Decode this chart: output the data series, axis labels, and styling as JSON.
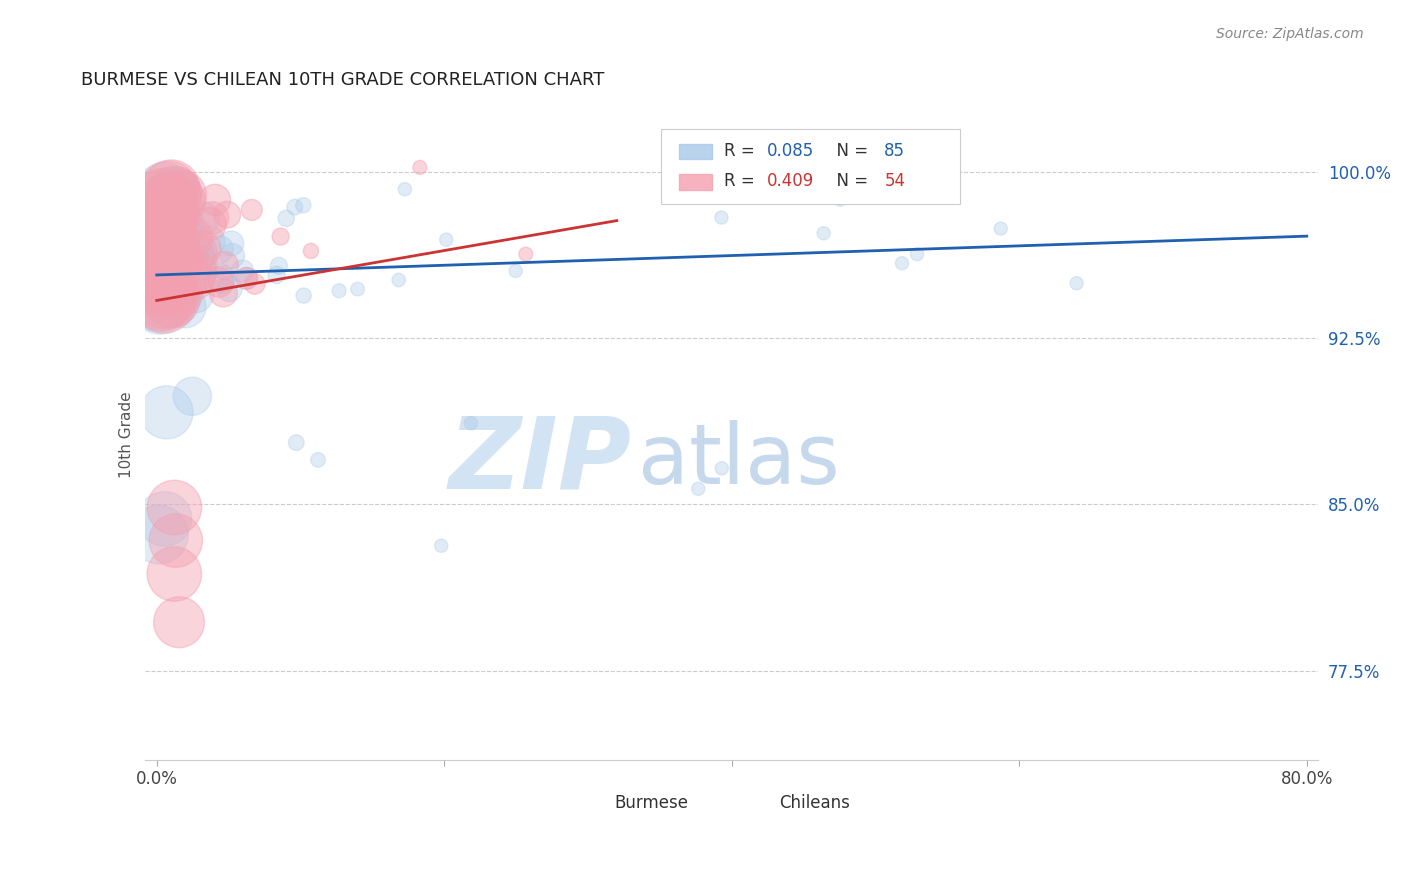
{
  "title": "BURMESE VS CHILEAN 10TH GRADE CORRELATION CHART",
  "source": "Source: ZipAtlas.com",
  "ylabel": "10th Grade",
  "y_ticks": [
    0.775,
    0.85,
    0.925,
    1.0
  ],
  "y_tick_labels": [
    "77.5%",
    "85.0%",
    "92.5%",
    "100.0%"
  ],
  "x_min": 0.0,
  "x_max": 0.8,
  "y_min": 0.735,
  "y_max": 1.028,
  "blue_R": 0.085,
  "blue_N": 85,
  "pink_R": 0.409,
  "pink_N": 54,
  "blue_color": "#a8c8e8",
  "pink_color": "#f4a0b0",
  "blue_line_color": "#2060b0",
  "pink_line_color": "#cc3333",
  "legend_blue_label": "Burmese",
  "legend_pink_label": "Chileans",
  "blue_N_color": "#2060b0",
  "pink_N_color": "#cc3333",
  "blue_line": {
    "x0": 0.0,
    "y0": 0.9535,
    "x1": 0.8,
    "y1": 0.971
  },
  "pink_line": {
    "x0": 0.0,
    "y0": 0.942,
    "x1": 0.32,
    "y1": 0.978
  },
  "watermark_zip": "ZIP",
  "watermark_atlas": "atlas",
  "watermark_color_zip": "#c5d8ec",
  "watermark_color_atlas": "#a8c8e8"
}
